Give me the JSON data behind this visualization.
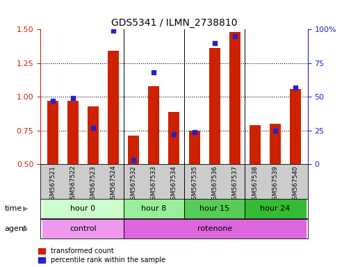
{
  "title": "GDS5341 / ILMN_2738810",
  "samples": [
    "GSM567521",
    "GSM567522",
    "GSM567523",
    "GSM567524",
    "GSM567532",
    "GSM567533",
    "GSM567534",
    "GSM567535",
    "GSM567536",
    "GSM567537",
    "GSM567538",
    "GSM567539",
    "GSM567540"
  ],
  "red_values": [
    0.97,
    0.97,
    0.93,
    1.34,
    0.71,
    1.08,
    0.89,
    0.75,
    1.36,
    1.48,
    0.79,
    0.8,
    1.06
  ],
  "blue_percentiles": [
    47,
    49,
    27,
    99,
    3,
    68,
    22,
    24,
    90,
    95,
    null,
    25,
    57
  ],
  "ylim_left": [
    0.5,
    1.5
  ],
  "ylim_right": [
    0,
    100
  ],
  "yticks_left": [
    0.5,
    0.75,
    1.0,
    1.25,
    1.5
  ],
  "yticks_right": [
    0,
    25,
    50,
    75,
    100
  ],
  "time_groups": [
    {
      "label": "hour 0",
      "start": 0,
      "end": 3,
      "color": "#ccffcc"
    },
    {
      "label": "hour 8",
      "start": 4,
      "end": 6,
      "color": "#99ee99"
    },
    {
      "label": "hour 15",
      "start": 7,
      "end": 9,
      "color": "#55cc55"
    },
    {
      "label": "hour 24",
      "start": 10,
      "end": 12,
      "color": "#33bb33"
    }
  ],
  "agent_groups": [
    {
      "label": "control",
      "start": 0,
      "end": 3,
      "color": "#ee99ee"
    },
    {
      "label": "rotenone",
      "start": 4,
      "end": 12,
      "color": "#dd66dd"
    }
  ],
  "group_boundaries": [
    3.5,
    6.5,
    9.5
  ],
  "bar_color": "#cc2200",
  "blue_color": "#2222cc",
  "bar_width": 0.55,
  "legend_red": "transformed count",
  "legend_blue": "percentile rank within the sample",
  "background_color": "#ffffff",
  "tick_area_color": "#cccccc",
  "grid_lines": [
    0.75,
    1.0,
    1.25
  ]
}
